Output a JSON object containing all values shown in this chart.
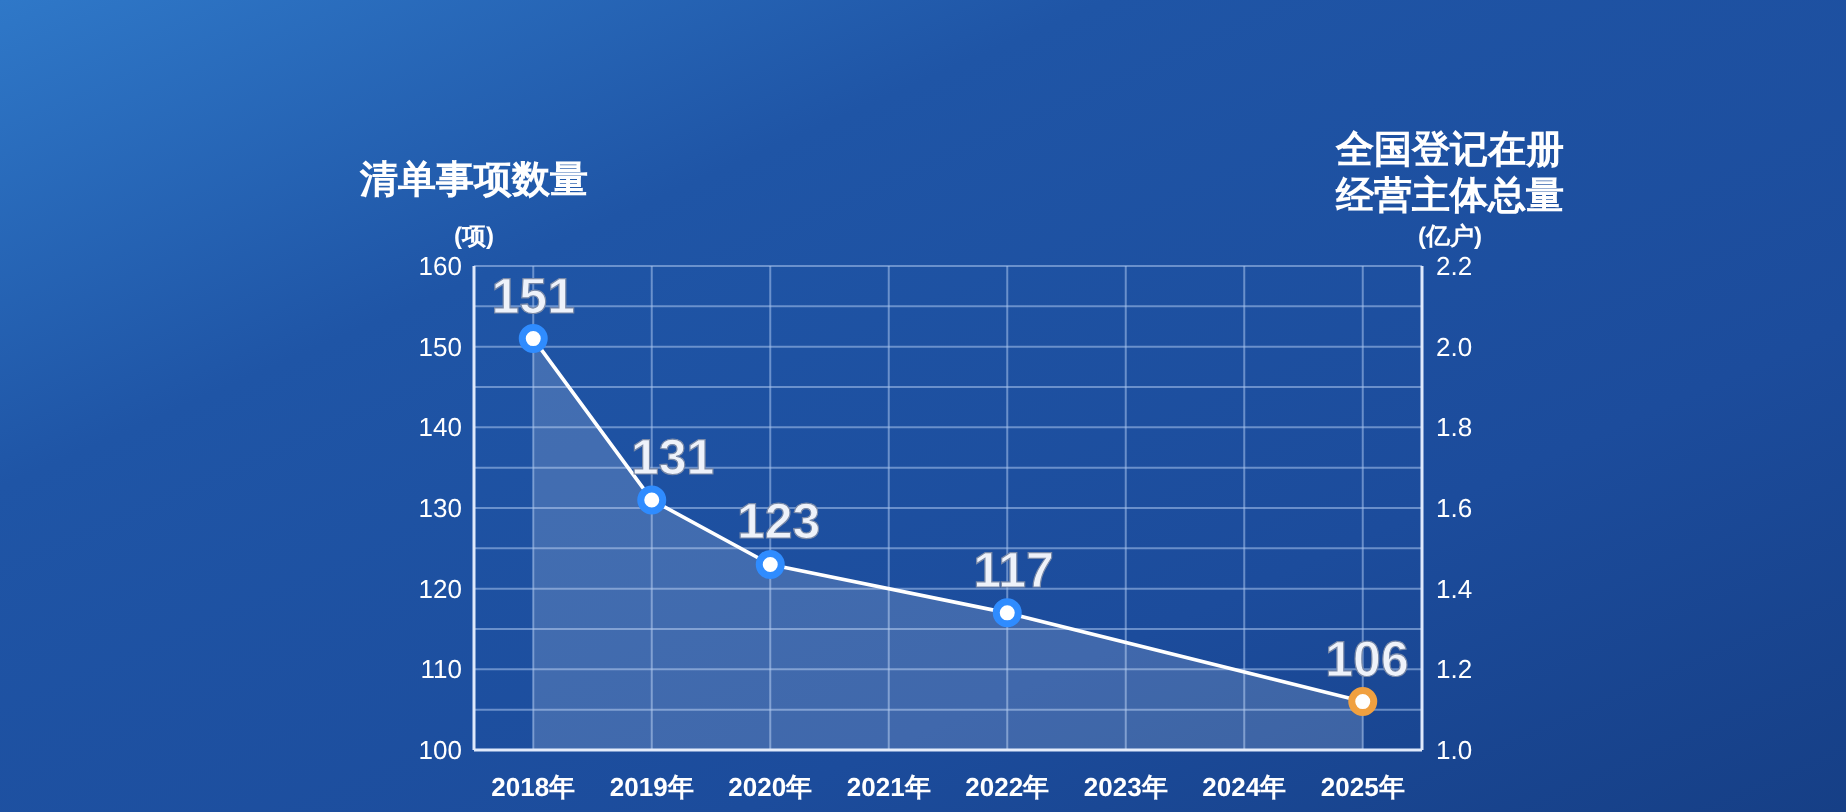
{
  "chart_data": {
    "type": "area",
    "ylabel": "清单事项数量\n(项)",
    "y2label": "全国登记在册经营主体总量\n(亿户)",
    "xlim": [
      2017.5,
      2025.5
    ],
    "xticks": [
      {
        "value": 2018,
        "label": "2018年"
      },
      {
        "value": 2019,
        "label": "2019年"
      },
      {
        "value": 2020,
        "label": "2020年"
      },
      {
        "value": 2021,
        "label": "2021年"
      },
      {
        "value": 2022,
        "label": "2022年"
      },
      {
        "value": 2023,
        "label": "2023年"
      },
      {
        "value": 2024,
        "label": "2024年"
      },
      {
        "value": 2025,
        "label": "2025年"
      }
    ],
    "ylim": [
      100,
      160
    ],
    "yticks": [
      100,
      {
        "value": 105,
        "label": null
      },
      110,
      {
        "value": 115,
        "label": null
      },
      120,
      {
        "value": 125,
        "label": null
      },
      130,
      {
        "value": 135,
        "label": null
      },
      140,
      {
        "value": 145,
        "label": null
      },
      150,
      {
        "value": 155,
        "label": null
      },
      160
    ],
    "y2lim": [
      1.0,
      2.2
    ],
    "y2ticks": [
      {
        "value": 1,
        "label": "1.0"
      },
      1.2,
      1.4,
      1.6,
      1.8,
      {
        "value": 2,
        "label": "2.0"
      },
      2.2
    ],
    "grid": true,
    "marker": "circle",
    "data_labels": true,
    "series": [
      {
        "color": "#ffffff",
        "colors": [
          "#2f8cff",
          "#2f8cff",
          "#2f8cff",
          "#2f8cff",
          "#f0a040"
        ],
        "x": [
          2018,
          2019,
          2020,
          2022,
          2025
        ],
        "values": [
          151,
          131,
          123,
          117,
          106
        ]
      }
    ]
  }
}
